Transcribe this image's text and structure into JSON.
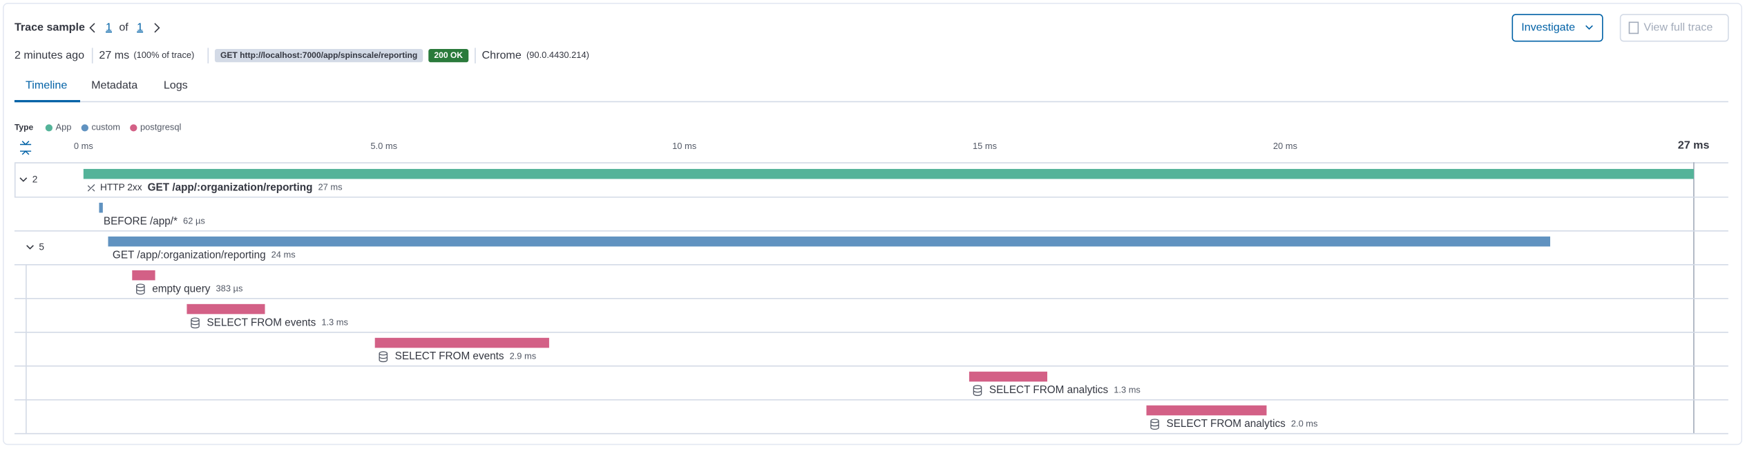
{
  "header": {
    "title": "Trace sample",
    "page": 1,
    "of": "of",
    "total": 1,
    "age": "2 minutes ago",
    "duration": "27 ms",
    "duration_note": "(100% of trace)",
    "request": "GET http://localhost:7000/app/spinscale/reporting",
    "status": "200 OK",
    "browser": "Chrome",
    "browser_version": "(90.0.4430.214)",
    "investigate": "Investigate",
    "view_full_trace": "View full trace"
  },
  "tabs": [
    "Timeline",
    "Metadata",
    "Logs"
  ],
  "chart_data": {
    "type": "waterfall",
    "legend_title": "Type",
    "legend": [
      {
        "name": "App",
        "color": "#54b399"
      },
      {
        "name": "custom",
        "color": "#6092c0"
      },
      {
        "name": "postgresql",
        "color": "#d36086"
      }
    ],
    "xlim": [
      0,
      26.8
    ],
    "xticks": [
      {
        "value": 0,
        "label": "0 ms"
      },
      {
        "value": 5,
        "label": "5.0 ms"
      },
      {
        "value": 10,
        "label": "10 ms"
      },
      {
        "value": 15,
        "label": "15 ms"
      },
      {
        "value": 20,
        "label": "20 ms"
      }
    ],
    "max_label": "27 ms",
    "spans": [
      {
        "children": 2,
        "status": "HTTP 2xx",
        "name": "GET /app/:organization/reporting",
        "start": 0,
        "duration": 26.8,
        "duration_label": "27 ms",
        "color": "#54b399"
      },
      {
        "name": "BEFORE /app/*",
        "start": 0.26,
        "duration": 0.062,
        "duration_label": "62 µs",
        "color": "#6092c0"
      },
      {
        "children": 5,
        "name": "GET /app/:organization/reporting",
        "start": 0.41,
        "duration": 24,
        "duration_label": "24 ms",
        "color": "#6092c0"
      },
      {
        "db": true,
        "name": "empty query",
        "start": 0.81,
        "duration": 0.383,
        "duration_label": "383 µs",
        "color": "#d36086"
      },
      {
        "db": true,
        "name": "SELECT FROM events",
        "start": 1.72,
        "duration": 1.3,
        "duration_label": "1.3 ms",
        "color": "#d36086"
      },
      {
        "db": true,
        "name": "SELECT FROM events",
        "start": 4.85,
        "duration": 2.9,
        "duration_label": "2.9 ms",
        "color": "#d36086"
      },
      {
        "db": true,
        "name": "SELECT FROM analytics",
        "start": 14.74,
        "duration": 1.3,
        "duration_label": "1.3 ms",
        "color": "#d36086"
      },
      {
        "db": true,
        "name": "SELECT FROM analytics",
        "start": 17.69,
        "duration": 2.0,
        "duration_label": "2.0 ms",
        "color": "#d36086"
      }
    ]
  }
}
